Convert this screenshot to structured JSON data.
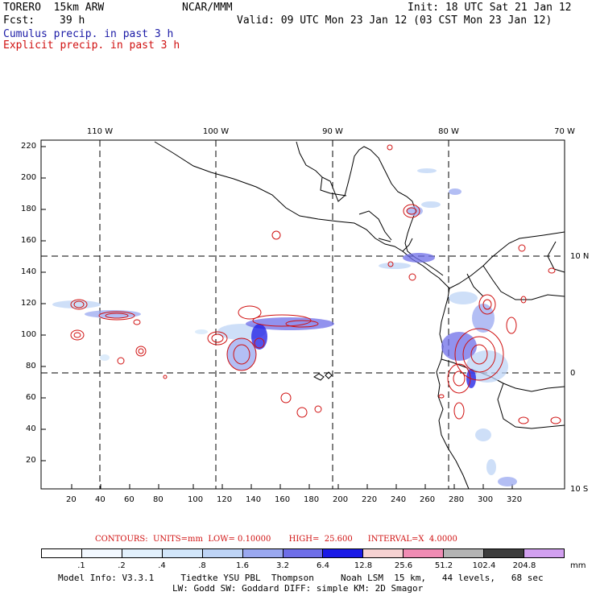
{
  "header": {
    "model": "TORERO  15km ARW",
    "center": "NCAR/MMM",
    "init": "Init: 18 UTC Sat 21 Jan 12",
    "fcst_label": "Fcst:",
    "fcst_hours": "39 h",
    "valid": "Valid: 09 UTC Mon 23 Jan 12 (03 CST Mon 23 Jan 12)",
    "field_cumulus": "Cumulus precip. in past 3 h",
    "field_explicit": "Explicit precip. in past 3 h"
  },
  "map": {
    "lon_labels": [
      "110 W",
      "100 W",
      "90 W",
      "80 W",
      "70 W"
    ],
    "lat_labels": [
      "10 N",
      "0",
      "10 S"
    ],
    "y_ticks": [
      "220",
      "200",
      "180",
      "160",
      "140",
      "120",
      "100",
      "80",
      "60",
      "40",
      "20"
    ],
    "x_ticks": [
      "20",
      "40",
      "60",
      "80",
      "100",
      "120",
      "140",
      "160",
      "180",
      "200",
      "220",
      "240",
      "260",
      "280",
      "300",
      "320"
    ]
  },
  "contours": {
    "text": "CONTOURS:  UNITS=mm  LOW= 0.10000       HIGH=  25.600      INTERVAL=X  4.0000"
  },
  "legend": {
    "colors": [
      "#ffffff",
      "#f2f8ff",
      "#e2f0fc",
      "#d2e6fa",
      "#bed4f6",
      "#9aa8f0",
      "#6e6ee8",
      "#1a1ae6",
      "#f6d2d2",
      "#f08cb4",
      "#b4b4b4",
      "#3c3c3c",
      "#d2a0f0"
    ],
    "labels": [
      ".1",
      ".2",
      ".4",
      ".8",
      "1.6",
      "3.2",
      "6.4",
      "12.8",
      "25.6",
      "51.2",
      "102.4",
      "204.8"
    ],
    "units": "mm"
  },
  "footer": {
    "line1": "Model Info: V3.3.1     Tiedtke YSU PBL  Thompson     Noah LSM  15 km,   44 levels,   68 sec",
    "line2": "LW: Godd SW: Goddard DIFF: simple KM: 2D Smagor"
  }
}
